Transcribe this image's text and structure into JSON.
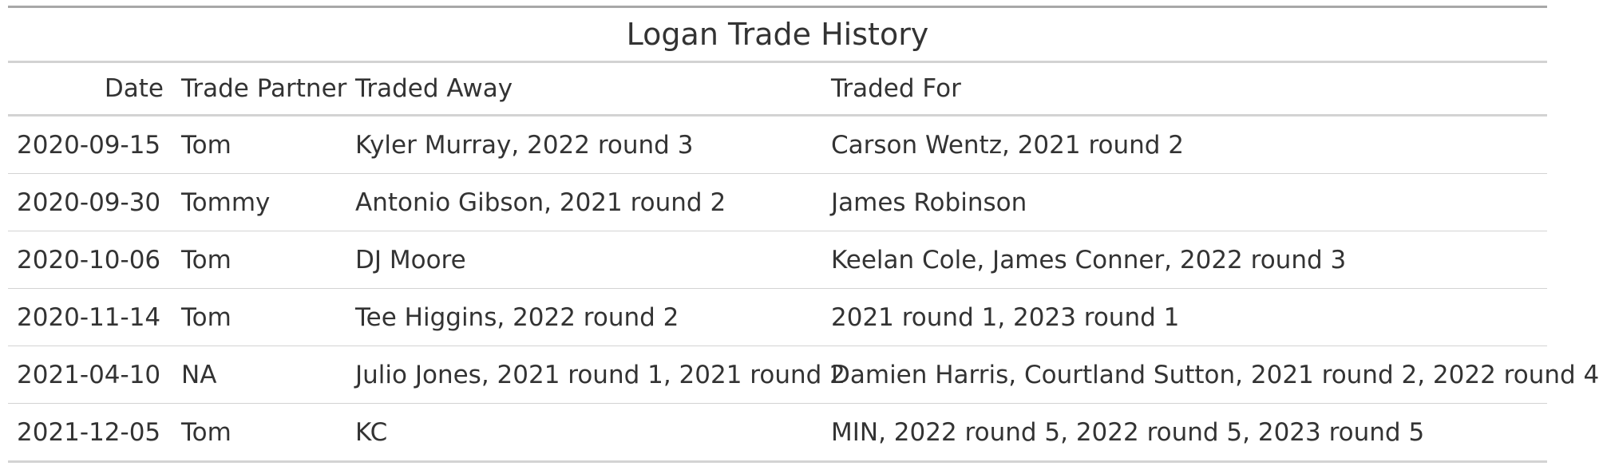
{
  "table": {
    "title": "Logan Trade History",
    "columns": {
      "date": "Date",
      "partner": "Trade Partner",
      "away": "Traded Away",
      "for": "Traded For"
    },
    "rows": [
      {
        "date": "2020-09-15",
        "partner": "Tom",
        "away": "Kyler Murray, 2022 round 3",
        "for": "Carson Wentz, 2021 round 2"
      },
      {
        "date": "2020-09-30",
        "partner": "Tommy",
        "away": "Antonio Gibson, 2021 round 2",
        "for": "James Robinson"
      },
      {
        "date": "2020-10-06",
        "partner": "Tom",
        "away": "DJ Moore",
        "for": "Keelan Cole, James Conner, 2022 round 3"
      },
      {
        "date": "2020-11-14",
        "partner": "Tom",
        "away": "Tee Higgins, 2022 round 2",
        "for": "2021 round 1, 2023 round 1"
      },
      {
        "date": "2021-04-10",
        "partner": "NA",
        "away": "Julio Jones, 2021 round 1, 2021 round 2",
        "for": "Damien Harris, Courtland Sutton, 2021 round 2, 2022 round 4"
      },
      {
        "date": "2021-12-05",
        "partner": "Tom",
        "away": "KC",
        "for": "MIN, 2022 round 5, 2022 round 5, 2023 round 5"
      }
    ]
  }
}
